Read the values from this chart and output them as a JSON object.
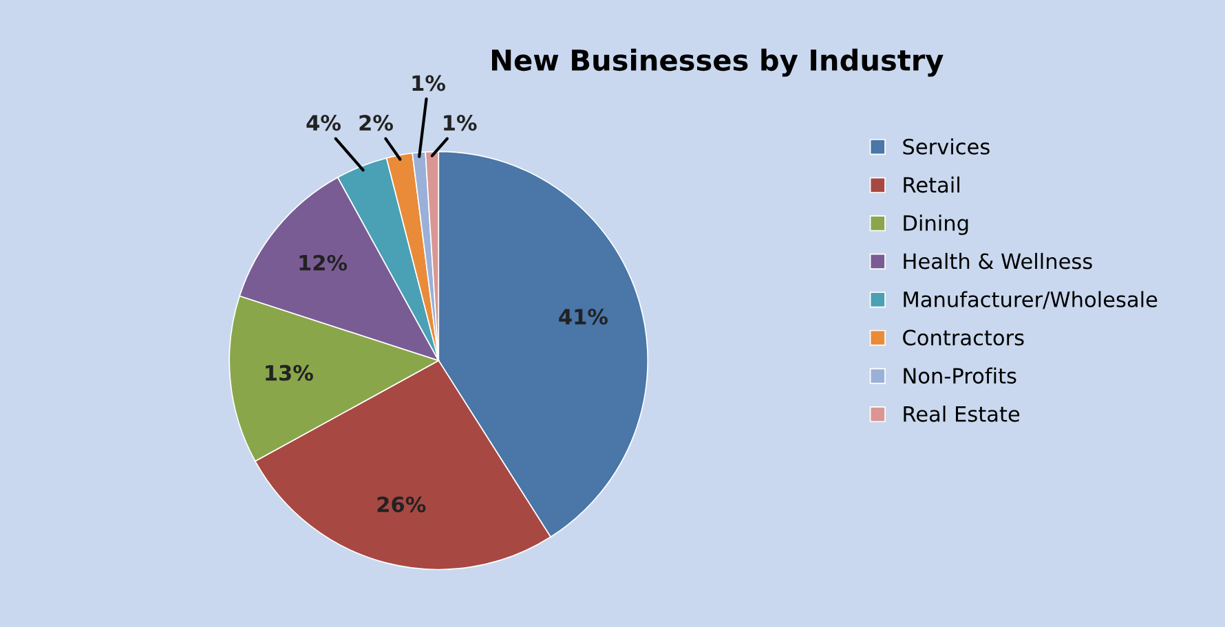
{
  "chart_data": {
    "type": "pie",
    "title": "New Businesses by Industry",
    "categories": [
      "Services",
      "Retail",
      "Dining",
      "Health & Wellness",
      "Manufacturer/Wholesale",
      "Contractors",
      "Non-Profits",
      "Real Estate"
    ],
    "values": [
      41,
      26,
      13,
      12,
      4,
      2,
      1,
      1
    ],
    "colors": [
      "#4a76a8",
      "#a84843",
      "#8aa64a",
      "#7a5c95",
      "#4aa0b4",
      "#e98b39",
      "#9ab0d8",
      "#d99694"
    ],
    "value_labels": [
      "41%",
      "26%",
      "13%",
      "12%",
      "4%",
      "2%",
      "1%",
      "1%"
    ],
    "legend": "right"
  }
}
